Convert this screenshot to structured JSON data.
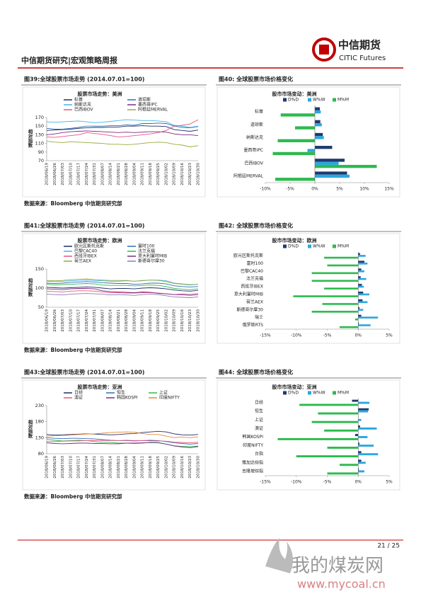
{
  "header": {
    "title": "中信期货研究|宏观策略周报",
    "logo_cn": "中信期货",
    "logo_en": "CITIC Futures"
  },
  "chart_data": [
    {
      "type": "line",
      "caption": "图39:全球股票市场走势 (2014.07.01=100)",
      "title": "股票市场走势：美洲",
      "ylabel": "相对指数",
      "x": [
        "2018/06/19",
        "2018/06/26",
        "2018/07/03",
        "2018/07/10",
        "2018/07/17",
        "2018/07/24",
        "2018/07/31",
        "2018/08/07",
        "2018/08/14",
        "2018/08/21",
        "2018/08/28",
        "2018/09/04",
        "2018/09/11",
        "2018/09/18",
        "2018/09/25",
        "2018/10/02",
        "2018/10/09",
        "2018/10/16",
        "2018/10/23",
        "2018/10/30"
      ],
      "series": [
        {
          "name": "标普",
          "color": "#1f2d6b",
          "values": [
            140,
            141,
            142,
            143,
            145,
            146,
            147,
            147,
            148,
            148,
            150,
            150,
            151,
            150,
            150,
            149,
            142,
            140,
            138,
            141
          ]
        },
        {
          "name": "道琼斯",
          "color": "#2f6fb5",
          "values": [
            145,
            143,
            143,
            145,
            147,
            150,
            150,
            150,
            151,
            151,
            153,
            152,
            156,
            156,
            157,
            156,
            150,
            147,
            146,
            149
          ]
        },
        {
          "name": "纳斯达克",
          "color": "#41b6e6",
          "values": [
            160,
            159,
            160,
            161,
            162,
            160,
            158,
            159,
            161,
            163,
            165,
            164,
            163,
            163,
            162,
            160,
            152,
            150,
            147,
            150
          ]
        },
        {
          "name": "墨西哥IPC",
          "color": "#7a2d7e",
          "values": [
            130,
            132,
            135,
            137,
            138,
            139,
            138,
            137,
            136,
            135,
            136,
            135,
            136,
            137,
            137,
            136,
            132,
            130,
            130,
            128
          ]
        },
        {
          "name": "巴西IBOV",
          "color": "#e75480",
          "values": [
            125,
            124,
            126,
            128,
            130,
            135,
            133,
            131,
            128,
            125,
            126,
            128,
            130,
            132,
            135,
            140,
            150,
            152,
            155,
            165
          ]
        },
        {
          "name": "阿根廷MERVAL",
          "color": "#9aaa3c",
          "values": [
            115,
            113,
            112,
            114,
            113,
            112,
            111,
            110,
            108,
            108,
            107,
            108,
            110,
            112,
            113,
            112,
            108,
            106,
            102,
            105
          ]
        }
      ],
      "ylim": [
        70,
        170
      ],
      "yticks": [
        70,
        90,
        110,
        130,
        150,
        170
      ],
      "source": "数据来源：Bloomberg 中信期货研究部"
    },
    {
      "type": "hbar",
      "caption": "图40: 全球股票市场价格变化",
      "title": "股市市场变动：美洲",
      "categories": [
        "标普",
        "道琼斯",
        "纳斯达克",
        "墨西哥IPC",
        "巴西IBOV",
        "阿根廷MERVAL"
      ],
      "series": [
        {
          "name": "D%D",
          "color": "#1f3a6e",
          "values": [
            1.0,
            1.1,
            1.6,
            3.5,
            6.0,
            6.5
          ]
        },
        {
          "name": "W%W",
          "color": "#2aa7e0",
          "values": [
            1.2,
            1.4,
            1.8,
            -1.5,
            4.8,
            7.0
          ]
        },
        {
          "name": "M%M",
          "color": "#2dba4e",
          "values": [
            -6.9,
            -4.0,
            -7.5,
            -8.5,
            12.5,
            -8.0
          ]
        }
      ],
      "xlim": [
        -10,
        15
      ],
      "xticks": [
        {
          "value": -10,
          "label": "-10%"
        },
        {
          "value": -5,
          "label": "-5%"
        },
        {
          "value": 0,
          "label": "0%"
        },
        {
          "value": 5,
          "label": "5%"
        },
        {
          "value": 10,
          "label": "10%"
        },
        {
          "value": 15,
          "label": "15%"
        }
      ]
    },
    {
      "type": "line",
      "caption": "图41:全球股票市场走势 (2014.07.01=100)",
      "title": "股票市场走势：欧洲",
      "ylabel": "相对指数",
      "x": [
        "2018/06/19",
        "2018/06/26",
        "2018/07/03",
        "2018/07/10",
        "2018/07/17",
        "2018/07/24",
        "2018/07/31",
        "2018/08/07",
        "2018/08/14",
        "2018/08/21",
        "2018/08/28",
        "2018/09/04",
        "2018/09/11",
        "2018/09/18",
        "2018/09/25",
        "2018/10/02",
        "2018/10/09",
        "2018/10/16",
        "2018/10/23",
        "2018/10/30"
      ],
      "series": [
        {
          "name": "欧元区斯托克斯",
          "color": "#1f2d6b",
          "values": [
            102,
            101,
            100,
            101,
            102,
            103,
            102,
            100,
            98,
            99,
            99,
            98,
            100,
            101,
            100,
            98,
            95,
            93,
            92,
            94
          ]
        },
        {
          "name": "富时100",
          "color": "#2f6fb5",
          "values": [
            113,
            112,
            113,
            115,
            116,
            117,
            116,
            114,
            113,
            112,
            112,
            110,
            111,
            113,
            113,
            111,
            106,
            104,
            103,
            104
          ]
        },
        {
          "name": "巴黎CAC40",
          "color": "#41b6e6",
          "values": [
            118,
            117,
            118,
            119,
            120,
            121,
            120,
            119,
            118,
            118,
            119,
            118,
            119,
            121,
            121,
            119,
            113,
            111,
            109,
            110
          ]
        },
        {
          "name": "法兰克福",
          "color": "#2dba4e",
          "values": [
            110,
            108,
            109,
            110,
            111,
            112,
            111,
            108,
            107,
            107,
            107,
            106,
            107,
            108,
            107,
            104,
            99,
            97,
            96,
            98
          ]
        },
        {
          "name": "西班牙IBEX",
          "color": "#e75480",
          "values": [
            92,
            91,
            90,
            92,
            93,
            93,
            92,
            90,
            88,
            88,
            87,
            87,
            88,
            88,
            87,
            85,
            83,
            82,
            81,
            82
          ]
        },
        {
          "name": "意大利富时MIB",
          "color": "#7a2d7e",
          "values": [
            98,
            97,
            96,
            98,
            99,
            99,
            98,
            93,
            91,
            90,
            89,
            88,
            90,
            89,
            86,
            85,
            83,
            84,
            83,
            85
          ]
        },
        {
          "name": "荷兰AEX",
          "color": "#9aaa3c",
          "values": [
            120,
            119,
            120,
            122,
            123,
            124,
            122,
            121,
            120,
            120,
            120,
            118,
            120,
            121,
            120,
            117,
            112,
            110,
            108,
            110
          ]
        },
        {
          "name": "斯德哥尔摩30",
          "color": "#8c7bb5",
          "values": [
            84,
            83,
            82,
            84,
            85,
            86,
            85,
            84,
            82,
            83,
            82,
            81,
            83,
            84,
            83,
            80,
            77,
            76,
            75,
            77
          ]
        }
      ],
      "ylim": [
        50,
        150
      ],
      "yticks": [
        50,
        100,
        150
      ],
      "source": "数据来源：Bloomberg 中信期货研究部"
    },
    {
      "type": "hbar",
      "caption": "图42: 全球股票市场价格变化",
      "title": "股市市场变动：欧洲",
      "categories": [
        "欧元区斯托克斯",
        "富时100",
        "巴黎CAC40",
        "法兰克福",
        "西班牙IBEX",
        "意大利富时MIB",
        "荷兰AEX",
        "斯德哥尔摩30",
        "瑞士",
        "俄罗斯RTS"
      ],
      "series": [
        {
          "name": "D%D",
          "color": "#1f3a6e",
          "values": [
            0.3,
            1.0,
            0.5,
            0.4,
            0.6,
            0.8,
            0.7,
            0.2,
            0.5,
            0.1
          ]
        },
        {
          "name": "W%W",
          "color": "#2aa7e0",
          "values": [
            1.2,
            1.5,
            1.0,
            1.3,
            0.9,
            1.8,
            1.5,
            0.8,
            3.2,
            2.0
          ]
        },
        {
          "name": "M%M",
          "color": "#2dba4e",
          "values": [
            -5.5,
            -5.0,
            -7.5,
            -7.5,
            -5.5,
            -10.5,
            -5.8,
            -7.5,
            -0.5,
            -3.0
          ]
        }
      ],
      "xlim": [
        -15,
        5
      ],
      "xticks": [
        {
          "value": -15,
          "label": "-15%"
        },
        {
          "value": -10,
          "label": "-10%"
        },
        {
          "value": -5,
          "label": "-5%"
        },
        {
          "value": 0,
          "label": "0%"
        },
        {
          "value": 5,
          "label": "5%"
        }
      ]
    },
    {
      "type": "line",
      "caption": "图43:全球股票市场走势 (2014.07.01=100)",
      "title": "股票市场走势：亚洲",
      "ylabel": "相对指数",
      "x": [
        "2018/06/19",
        "2018/06/26",
        "2018/07/03",
        "2018/07/10",
        "2018/07/17",
        "2018/07/24",
        "2018/07/31",
        "2018/08/07",
        "2018/08/14",
        "2018/08/21",
        "2018/08/28",
        "2018/09/04",
        "2018/09/11",
        "2018/09/18",
        "2018/09/25",
        "2018/10/02",
        "2018/10/09",
        "2018/10/16",
        "2018/10/23",
        "2018/10/30"
      ],
      "series": [
        {
          "name": "日经",
          "color": "#1f2d6b",
          "values": [
            140,
            138,
            139,
            140,
            141,
            142,
            141,
            140,
            139,
            140,
            142,
            143,
            146,
            148,
            150,
            148,
            142,
            139,
            138,
            140
          ]
        },
        {
          "name": "恒生",
          "color": "#2f6fb5",
          "values": [
            130,
            128,
            127,
            128,
            128,
            127,
            126,
            124,
            122,
            121,
            121,
            120,
            121,
            122,
            121,
            118,
            114,
            112,
            110,
            112
          ]
        },
        {
          "name": "上证",
          "color": "#2dba4e",
          "values": [
            125,
            122,
            120,
            121,
            122,
            121,
            118,
            116,
            115,
            113,
            113,
            112,
            113,
            115,
            115,
            110,
            105,
            103,
            102,
            104
          ]
        },
        {
          "name": "澳证",
          "color": "#e75480",
          "values": [
            118,
            118,
            119,
            120,
            120,
            121,
            121,
            122,
            121,
            121,
            122,
            121,
            121,
            120,
            120,
            119,
            116,
            115,
            114,
            116
          ]
        },
        {
          "name": "韩国KOSPI",
          "color": "#7a2d7e",
          "values": [
            114,
            112,
            111,
            112,
            113,
            113,
            112,
            112,
            111,
            111,
            113,
            113,
            114,
            114,
            114,
            110,
            104,
            101,
            99,
            102
          ]
        },
        {
          "name": "印度NIFTY",
          "color": "#e8892b",
          "values": [
            135,
            136,
            137,
            138,
            140,
            141,
            142,
            144,
            146,
            147,
            148,
            147,
            143,
            140,
            140,
            135,
            130,
            132,
            130,
            132
          ]
        }
      ],
      "ylim": [
        80,
        230
      ],
      "yticks": [
        80,
        130,
        180,
        230
      ],
      "source": "数据来源：Bloomberg 中信期货研究部"
    },
    {
      "type": "hbar",
      "caption": "图44: 全球股票市场价格变化",
      "title": "股市市场变动：亚洲",
      "categories": [
        "日经",
        "恒生",
        "上证",
        "澳证",
        "韩国KOSPI",
        "印度NIFTY",
        "台指",
        "雅加达综指",
        "吉隆坡综指"
      ],
      "series": [
        {
          "name": "D%D",
          "color": "#1f3a6e",
          "values": [
            -1.0,
            1.7,
            0,
            0.3,
            -0.5,
            0.2,
            0.5,
            0.5,
            0.1
          ]
        },
        {
          "name": "W%W",
          "color": "#2aa7e0",
          "values": [
            1.8,
            1.6,
            0.5,
            3.0,
            1.5,
            2.5,
            3.2,
            1.2,
            1.0
          ]
        },
        {
          "name": "M%M",
          "color": "#2dba4e",
          "values": [
            -9.5,
            -6.5,
            -7.5,
            -5.5,
            -13.0,
            -5.0,
            -10.0,
            -3.0,
            -5.0
          ]
        }
      ],
      "xlim": [
        -15,
        5
      ],
      "xticks": [
        {
          "value": -15,
          "label": "-15%"
        },
        {
          "value": -10,
          "label": "-10%"
        },
        {
          "value": -5,
          "label": "-5%"
        },
        {
          "value": 0,
          "label": "0%"
        },
        {
          "value": 5,
          "label": "5%"
        }
      ]
    }
  ],
  "footer": {
    "page": "21 / 25",
    "watermark": "我的煤炭网",
    "watermark_url": "www.mycoal.cn"
  }
}
